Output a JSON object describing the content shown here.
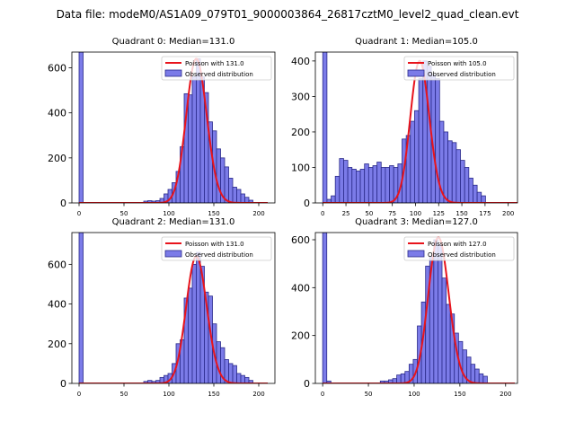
{
  "figure_title": "Data file: modeM0/AS1A09_079T01_9000003864_26817cztM0_level2_quad_clean.evt",
  "legend_labels": {
    "poisson_prefix": "Poisson with ",
    "observed": "Observed distribution"
  },
  "colors": {
    "hist_fill": "#7b7be8",
    "hist_edge": "#2a2a8a",
    "poisson": "#e8141c",
    "axis": "#000000"
  },
  "chart_data": [
    {
      "type": "bar",
      "title": "Quadrant 0: Median=131.0",
      "median": 131.0,
      "poisson_label": "131.0",
      "xlim": [
        -8,
        218
      ],
      "ylim": [
        0,
        670
      ],
      "xticks": [
        0,
        50,
        100,
        150,
        200
      ],
      "yticks": [
        0,
        200,
        400,
        600
      ],
      "bin_width": 4.5,
      "bin_starts": [
        0,
        72,
        76.5,
        81,
        85.5,
        90,
        94.5,
        99,
        103.5,
        108,
        112.5,
        117,
        121.5,
        126,
        130.5,
        135,
        139.5,
        144,
        148.5,
        153,
        157.5,
        162,
        166.5,
        171,
        175.5,
        180,
        184.5,
        189
      ],
      "counts": [
        670,
        8,
        10,
        8,
        10,
        20,
        40,
        60,
        90,
        140,
        250,
        485,
        480,
        560,
        640,
        560,
        490,
        360,
        320,
        240,
        200,
        160,
        110,
        70,
        60,
        40,
        25,
        12
      ],
      "poisson_scale": 640
    },
    {
      "type": "bar",
      "title": "Quadrant 1: Median=105.0",
      "median": 105.0,
      "poisson_label": "105.0",
      "xlim": [
        -8,
        210
      ],
      "ylim": [
        0,
        425
      ],
      "xticks": [
        0,
        25,
        50,
        75,
        100,
        125,
        150,
        175,
        200
      ],
      "yticks": [
        0,
        100,
        200,
        300,
        400
      ],
      "bin_width": 4.5,
      "bin_starts": [
        0,
        4.5,
        9,
        13.5,
        18,
        22.5,
        27,
        31.5,
        36,
        40.5,
        45,
        49.5,
        54,
        58.5,
        63,
        67.5,
        72,
        76.5,
        81,
        85.5,
        90,
        94.5,
        99,
        103.5,
        108,
        112.5,
        117,
        121.5,
        126,
        130.5,
        135,
        139.5,
        144,
        148.5,
        153,
        157.5,
        162,
        166.5,
        171
      ],
      "counts": [
        425,
        10,
        20,
        75,
        125,
        120,
        100,
        95,
        90,
        95,
        110,
        100,
        105,
        115,
        100,
        100,
        105,
        100,
        110,
        180,
        190,
        230,
        260,
        350,
        400,
        385,
        360,
        350,
        230,
        200,
        175,
        170,
        150,
        120,
        100,
        70,
        50,
        30,
        20
      ],
      "poisson_scale": 400
    },
    {
      "type": "bar",
      "title": "Quadrant 2: Median=131.0",
      "median": 131.0,
      "poisson_label": "131.0",
      "xlim": [
        -8,
        218
      ],
      "ylim": [
        0,
        760
      ],
      "xticks": [
        0,
        50,
        100,
        150,
        200
      ],
      "yticks": [
        0,
        200,
        400,
        600
      ],
      "bin_width": 4.5,
      "bin_starts": [
        0,
        72,
        76.5,
        81,
        85.5,
        90,
        94.5,
        99,
        103.5,
        108,
        112.5,
        117,
        121.5,
        126,
        130.5,
        135,
        139.5,
        144,
        148.5,
        153,
        157.5,
        162,
        166.5,
        171,
        175.5,
        180,
        184.5,
        189
      ],
      "counts": [
        760,
        10,
        15,
        10,
        15,
        30,
        40,
        50,
        100,
        200,
        220,
        430,
        480,
        600,
        660,
        590,
        460,
        440,
        300,
        210,
        180,
        120,
        100,
        90,
        50,
        40,
        30,
        15
      ],
      "poisson_scale": 640
    },
    {
      "type": "bar",
      "title": "Quadrant 3: Median=127.0",
      "median": 127.0,
      "poisson_label": "127.0",
      "xlim": [
        -8,
        213
      ],
      "ylim": [
        0,
        630
      ],
      "xticks": [
        0,
        50,
        100,
        150,
        200
      ],
      "yticks": [
        0,
        200,
        400,
        600
      ],
      "bin_width": 4.5,
      "bin_starts": [
        0,
        4.5,
        63,
        67.5,
        72,
        76.5,
        81,
        85.5,
        90,
        94.5,
        99,
        103.5,
        108,
        112.5,
        117,
        121.5,
        126,
        130.5,
        135,
        139.5,
        144,
        148.5,
        153,
        157.5,
        162,
        166.5,
        171,
        175.5
      ],
      "counts": [
        630,
        10,
        10,
        10,
        15,
        20,
        35,
        40,
        50,
        80,
        100,
        240,
        340,
        490,
        530,
        600,
        580,
        440,
        330,
        290,
        210,
        175,
        140,
        110,
        80,
        60,
        40,
        30
      ],
      "poisson_scale": 610
    }
  ]
}
